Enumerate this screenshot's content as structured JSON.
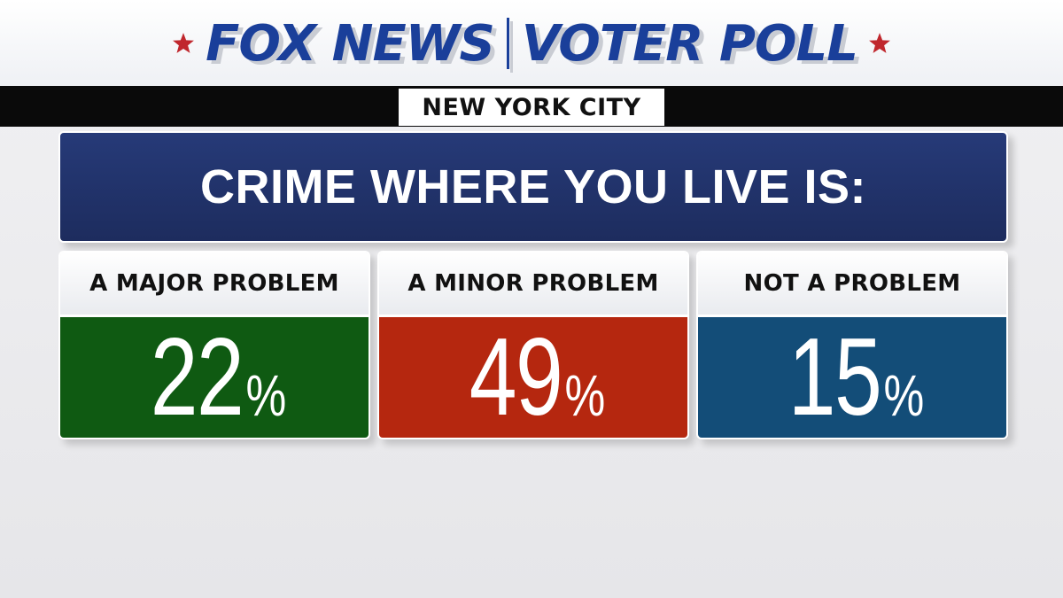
{
  "header": {
    "brand": "FOX NEWS",
    "section": "VOTER POLL",
    "location": "NEW YORK CITY",
    "colors": {
      "brand_blue": "#1a3f9a",
      "star_red": "#c0272d"
    }
  },
  "chart_data": {
    "type": "bar",
    "title": "CRIME WHERE YOU LIVE IS:",
    "categories": [
      "A MAJOR PROBLEM",
      "A MINOR PROBLEM",
      "NOT A PROBLEM"
    ],
    "values": [
      22,
      49,
      15
    ],
    "unit": "%",
    "colors": [
      "#0f5a12",
      "#b5270f",
      "#134d78"
    ]
  }
}
